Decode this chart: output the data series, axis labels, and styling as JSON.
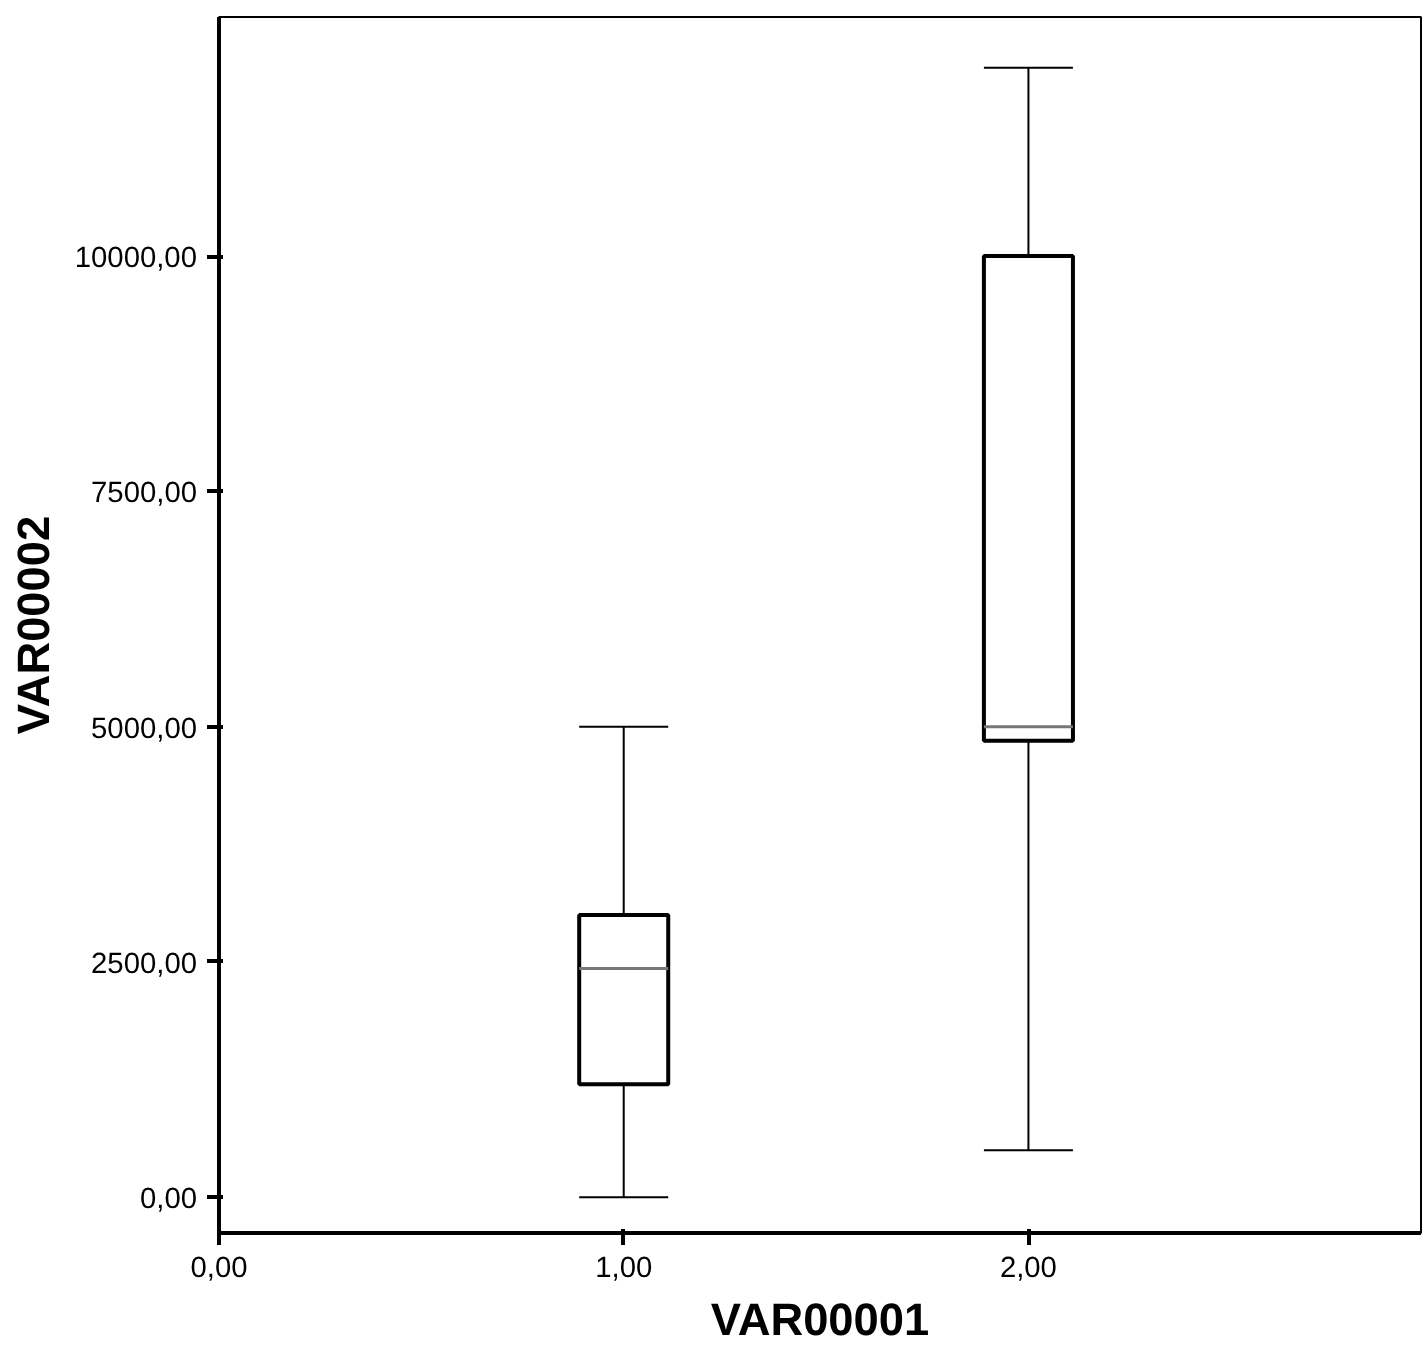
{
  "chart_data": {
    "type": "box",
    "xlabel": "VAR00001",
    "ylabel": "VAR00002",
    "x": [
      1,
      2
    ],
    "boxes": [
      {
        "low": 0,
        "q1": 1200,
        "median": 2430,
        "q3": 3000,
        "high": 5000
      },
      {
        "low": 500,
        "q1": 4850,
        "median": 5000,
        "q3": 10000,
        "high": 12000
      }
    ],
    "color": "#ffffff",
    "xlim": [
      0,
      2.97
    ],
    "ylim": [
      -380,
      12540
    ],
    "xticks": [
      {
        "value": 0,
        "label": "0,00"
      },
      {
        "value": 1,
        "label": "1,00"
      },
      {
        "value": 2,
        "label": "2,00"
      }
    ],
    "yticks": [
      {
        "value": 0,
        "label": "0,00"
      },
      {
        "value": 2500,
        "label": "2500,00"
      },
      {
        "value": 5000,
        "label": "5000,00"
      },
      {
        "value": 7500,
        "label": "7500,00"
      },
      {
        "value": 10000,
        "label": "10000,00"
      }
    ],
    "grid": false
  }
}
